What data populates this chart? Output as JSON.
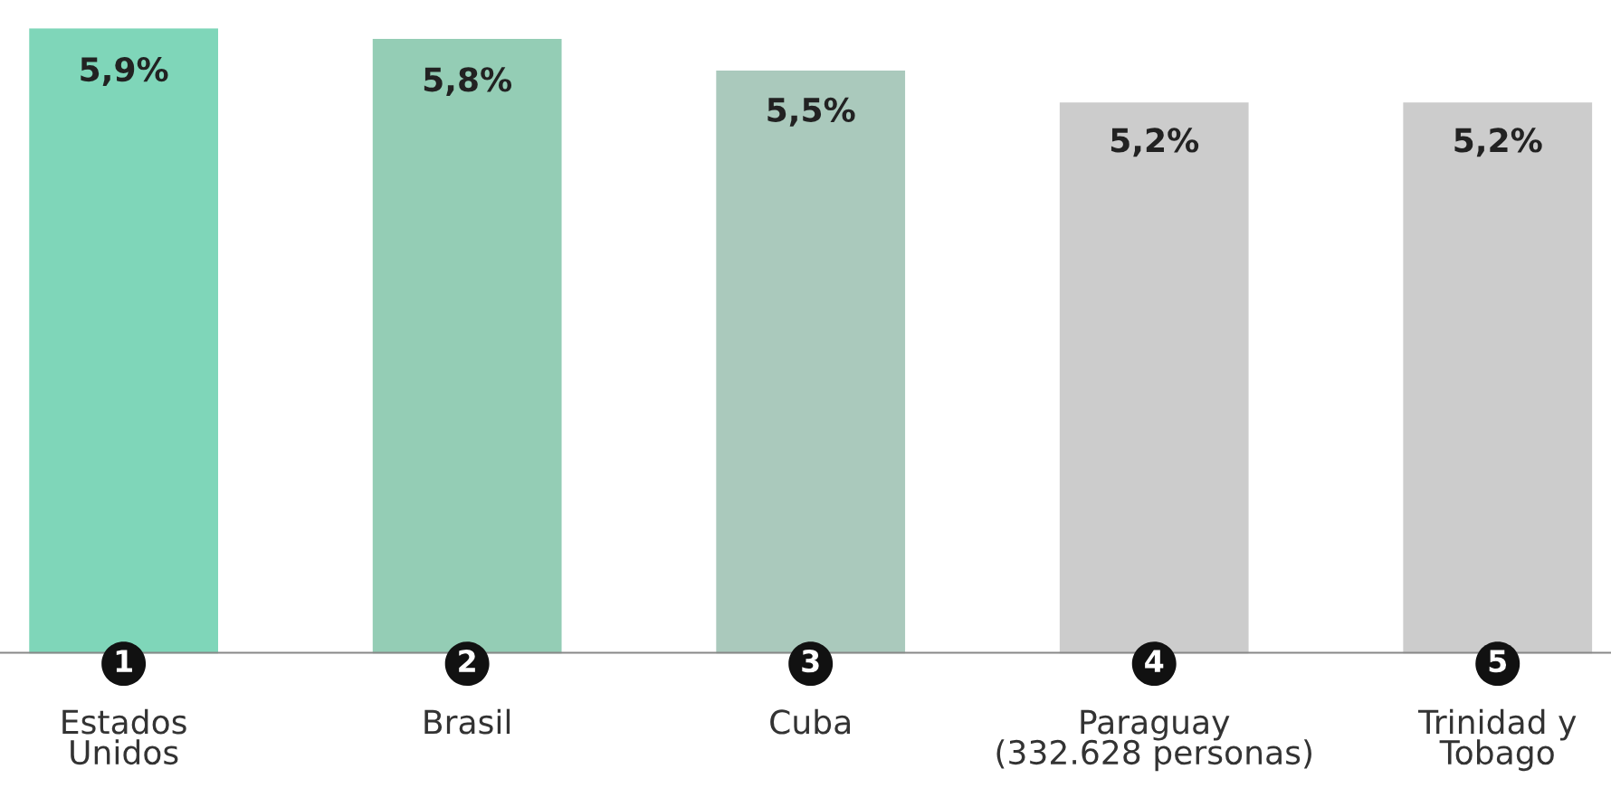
{
  "chart_data": {
    "type": "bar",
    "categories": [
      "Estados\nUnidos",
      "Brasil",
      "Cuba",
      "Paraguay\n(332.628 personas)",
      "Trinidad y\nTobago"
    ],
    "values": [
      5.9,
      5.8,
      5.5,
      5.2,
      5.2
    ],
    "colors": [
      "#7fd6b9",
      "#94cdb5",
      "#aac9bc",
      "#cccccc",
      "#cccccc"
    ],
    "value_labels": [
      "5,9%",
      "5,8%",
      "5,5%",
      "5,2%",
      "5,2%"
    ],
    "annotations": [
      {
        "text": "1",
        "x": "Estados\nUnidos",
        "y": 0
      },
      {
        "text": "2",
        "x": "Brasil",
        "y": 0
      },
      {
        "text": "3",
        "x": "Cuba",
        "y": 0
      },
      {
        "text": "4",
        "x": "Paraguay\n(332.628 personas)",
        "y": 0
      },
      {
        "text": "5",
        "x": "Trinidad y\nTobago",
        "y": 0
      }
    ]
  }
}
